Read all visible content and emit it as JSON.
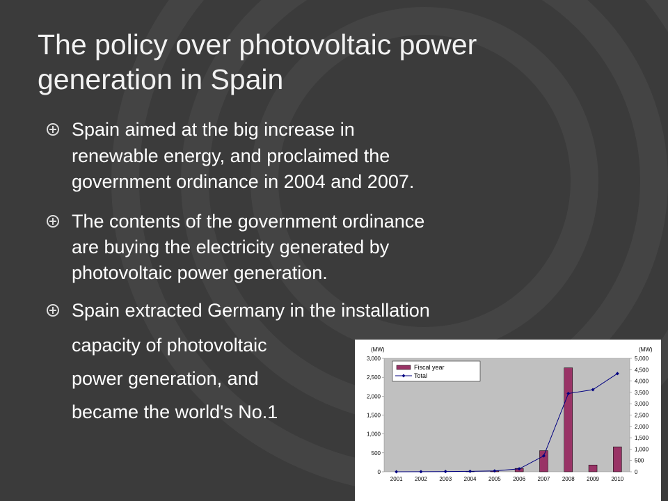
{
  "slide": {
    "title": [
      "The policy over photovoltaic power",
      "generation in Spain"
    ],
    "bullets": [
      [
        "Spain aimed at the big increase in",
        "renewable energy, and proclaimed the",
        "government ordinance in 2004 and 2007."
      ],
      [
        "The contents of the government ordinance",
        "are buying the electricity generated by",
        "photovoltaic power generation."
      ],
      [
        "Spain extracted Germany in the installation",
        "capacity of photovoltaic",
        "power generation, and",
        "became the world's No.1"
      ]
    ]
  },
  "chart_data": {
    "type": "bar",
    "y_unit": "(MW)",
    "y2_unit": "(MW)",
    "categories": [
      "2001",
      "2002",
      "2003",
      "2004",
      "2005",
      "2006",
      "2007",
      "2008",
      "2009",
      "2010"
    ],
    "series": [
      {
        "name": "Fiscal year",
        "type": "bar",
        "color": "#993366",
        "values": [
          0,
          0,
          0,
          10,
          20,
          90,
          560,
          2750,
          180,
          660
        ]
      },
      {
        "name": "Total",
        "type": "line",
        "axis": "y2",
        "color": "#000080",
        "values": [
          0,
          5,
          10,
          20,
          40,
          130,
          700,
          3450,
          3620,
          4330
        ]
      }
    ],
    "ylim": [
      0,
      3000
    ],
    "yticks": [
      0,
      500,
      {
        "value": 1000,
        "label": "1,000"
      },
      {
        "value": 1500,
        "label": "1,500"
      },
      {
        "value": 2000,
        "label": "2,000"
      },
      {
        "value": 2500,
        "label": "2,500"
      },
      {
        "value": 3000,
        "label": "3,000"
      }
    ],
    "y2lim": [
      0,
      5000
    ],
    "y2ticks": [
      0,
      500,
      {
        "value": 1000,
        "label": "1,000"
      },
      {
        "value": 1500,
        "label": "1,500"
      },
      {
        "value": 2000,
        "label": "2,000"
      },
      {
        "value": 2500,
        "label": "2,500"
      },
      {
        "value": 3000,
        "label": "3,000"
      },
      {
        "value": 3500,
        "label": "3,500"
      },
      {
        "value": 4000,
        "label": "4,000"
      },
      {
        "value": 4500,
        "label": "4,500"
      },
      {
        "value": 5000,
        "label": "5,000"
      }
    ],
    "grid": false,
    "legend": "top-left"
  }
}
